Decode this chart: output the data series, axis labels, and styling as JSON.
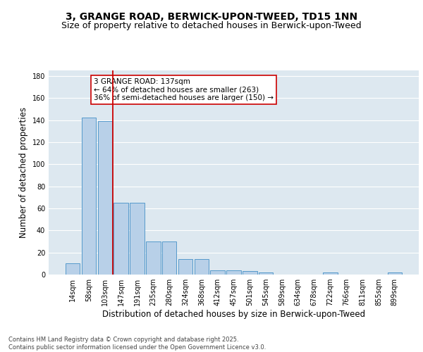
{
  "title_line1": "3, GRANGE ROAD, BERWICK-UPON-TWEED, TD15 1NN",
  "title_line2": "Size of property relative to detached houses in Berwick-upon-Tweed",
  "xlabel": "Distribution of detached houses by size in Berwick-upon-Tweed",
  "ylabel": "Number of detached properties",
  "categories": [
    "14sqm",
    "58sqm",
    "103sqm",
    "147sqm",
    "191sqm",
    "235sqm",
    "280sqm",
    "324sqm",
    "368sqm",
    "412sqm",
    "457sqm",
    "501sqm",
    "545sqm",
    "589sqm",
    "634sqm",
    "678sqm",
    "722sqm",
    "766sqm",
    "811sqm",
    "855sqm",
    "899sqm"
  ],
  "values": [
    10,
    142,
    139,
    65,
    65,
    30,
    30,
    14,
    14,
    4,
    4,
    3,
    2,
    0,
    0,
    0,
    2,
    0,
    0,
    0,
    2
  ],
  "bar_color": "#b8d0e8",
  "bar_edge_color": "#5599cc",
  "vline_x": 2.5,
  "vline_color": "#cc0000",
  "annotation_text": "3 GRANGE ROAD: 137sqm\n← 64% of detached houses are smaller (263)\n36% of semi-detached houses are larger (150) →",
  "annotation_box_color": "#ffffff",
  "annotation_box_edge": "#cc0000",
  "ylim": [
    0,
    185
  ],
  "yticks": [
    0,
    20,
    40,
    60,
    80,
    100,
    120,
    140,
    160,
    180
  ],
  "background_color": "#dde8f0",
  "grid_color": "#ffffff",
  "footer_text": "Contains HM Land Registry data © Crown copyright and database right 2025.\nContains public sector information licensed under the Open Government Licence v3.0.",
  "title_fontsize": 10,
  "subtitle_fontsize": 9,
  "tick_fontsize": 7,
  "label_fontsize": 8.5,
  "annotation_fontsize": 7.5,
  "footer_fontsize": 6
}
